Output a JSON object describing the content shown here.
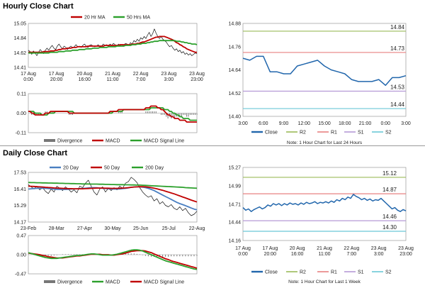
{
  "sections": {
    "hourly_title": "Hourly Close Chart",
    "daily_title": "Daily Close Chart"
  },
  "colors": {
    "price": "#111111",
    "ma20": "#c00000",
    "ma50": "#2ca02c",
    "ma200": "#2ca02c",
    "ma20_daily": "#4a7fc1",
    "ma50_daily": "#c00000",
    "macd_hourly": "#c00000",
    "signal_hourly": "#2ca02c",
    "macd_daily": "#2ca02c",
    "signal_daily": "#c00000",
    "divergence": "#777777",
    "close": "#2166ac",
    "r2": "#9bbb59",
    "r1": "#e88080",
    "s1": "#b59ad6",
    "s2": "#6bc8d6"
  },
  "chart_data": [
    {
      "id": "hourly_price",
      "type": "line",
      "legend": [
        "20 Hr MA",
        "50 Hrs MA"
      ],
      "ylim": [
        14.41,
        15.05
      ],
      "yticks": [
        15.05,
        14.84,
        14.62,
        14.41
      ],
      "xticks": [
        "17 Aug\n0:00",
        "17 Aug\n20:00",
        "20 Aug\n16:00",
        "21 Aug\n11:00",
        "22 Aug\n7:00",
        "23 Aug\n3:00",
        "23 Aug\n23:00"
      ],
      "n": 100,
      "price": [
        14.66,
        14.64,
        14.6,
        14.65,
        14.62,
        14.58,
        14.63,
        14.67,
        14.64,
        14.61,
        14.66,
        14.69,
        14.66,
        14.7,
        14.73,
        14.69,
        14.67,
        14.72,
        14.75,
        14.71,
        14.68,
        14.72,
        14.7,
        14.67,
        14.7,
        14.72,
        14.69,
        14.71,
        14.74,
        14.71,
        14.72,
        14.7,
        14.73,
        14.75,
        14.72,
        14.7,
        14.73,
        14.74,
        14.72,
        14.71,
        14.72,
        14.74,
        14.71,
        14.72,
        14.75,
        14.73,
        14.74,
        14.72,
        14.75,
        14.73,
        14.76,
        14.74,
        14.72,
        14.75,
        14.73,
        14.74,
        14.72,
        14.76,
        14.75,
        14.73,
        14.77,
        14.75,
        14.8,
        14.78,
        14.82,
        14.79,
        14.84,
        14.82,
        14.86,
        14.83,
        14.88,
        14.92,
        14.86,
        14.9,
        14.97,
        14.91,
        14.86,
        14.83,
        14.86,
        14.82,
        14.8,
        14.78,
        14.74,
        14.71,
        14.73,
        14.69,
        14.66,
        14.68,
        14.64,
        14.66,
        14.62,
        14.64,
        14.6,
        14.62,
        14.59,
        14.61,
        14.58,
        14.6,
        14.62,
        14.61
      ],
      "ma20": [
        14.63,
        14.63,
        14.63,
        14.63,
        14.63,
        14.63,
        14.63,
        14.63,
        14.63,
        14.64,
        14.64,
        14.64,
        14.64,
        14.65,
        14.65,
        14.65,
        14.66,
        14.66,
        14.67,
        14.67,
        14.68,
        14.68,
        14.68,
        14.69,
        14.69,
        14.69,
        14.7,
        14.7,
        14.7,
        14.71,
        14.71,
        14.71,
        14.71,
        14.71,
        14.71,
        14.72,
        14.72,
        14.72,
        14.72,
        14.72,
        14.72,
        14.72,
        14.72,
        14.72,
        14.72,
        14.73,
        14.73,
        14.73,
        14.73,
        14.73,
        14.73,
        14.73,
        14.73,
        14.73,
        14.74,
        14.74,
        14.74,
        14.74,
        14.74,
        14.74,
        14.74,
        14.75,
        14.75,
        14.75,
        14.76,
        14.76,
        14.77,
        14.78,
        14.78,
        14.79,
        14.8,
        14.81,
        14.82,
        14.83,
        14.84,
        14.85,
        14.85,
        14.86,
        14.86,
        14.86,
        14.86,
        14.85,
        14.84,
        14.83,
        14.82,
        14.81,
        14.79,
        14.77,
        14.76,
        14.74,
        14.73,
        14.71,
        14.7,
        14.68,
        14.67,
        14.66,
        14.65,
        14.64,
        14.63,
        14.63
      ],
      "ma50": [
        14.62,
        14.62,
        14.62,
        14.62,
        14.62,
        14.62,
        14.62,
        14.62,
        14.62,
        14.62,
        14.62,
        14.62,
        14.62,
        14.63,
        14.63,
        14.63,
        14.63,
        14.63,
        14.64,
        14.64,
        14.64,
        14.64,
        14.65,
        14.65,
        14.65,
        14.65,
        14.66,
        14.66,
        14.66,
        14.66,
        14.67,
        14.67,
        14.67,
        14.67,
        14.68,
        14.68,
        14.68,
        14.68,
        14.69,
        14.69,
        14.69,
        14.69,
        14.7,
        14.7,
        14.7,
        14.7,
        14.7,
        14.71,
        14.71,
        14.71,
        14.71,
        14.71,
        14.72,
        14.72,
        14.72,
        14.72,
        14.72,
        14.73,
        14.73,
        14.73,
        14.73,
        14.74,
        14.74,
        14.74,
        14.75,
        14.75,
        14.75,
        14.76,
        14.76,
        14.76,
        14.77,
        14.77,
        14.78,
        14.78,
        14.79,
        14.79,
        14.79,
        14.8,
        14.8,
        14.8,
        14.8,
        14.8,
        14.8,
        14.8,
        14.8,
        14.8,
        14.8,
        14.79,
        14.79,
        14.79,
        14.78,
        14.78,
        14.77,
        14.77,
        14.76,
        14.76,
        14.75,
        14.75,
        14.75,
        14.74
      ]
    },
    {
      "id": "hourly_macd",
      "type": "line",
      "legend": [
        "Divergence",
        "MACD",
        "MACD Signal Line"
      ],
      "ylim": [
        -0.11,
        0.11
      ],
      "yticks": [
        0.11,
        0.0,
        -0.11
      ],
      "macd": [
        0.01,
        0.01,
        0.0,
        0.0,
        -0.01,
        -0.01,
        -0.01,
        -0.01,
        -0.01,
        -0.01,
        0.0,
        0.0,
        0.0,
        0.01,
        0.01,
        0.01,
        0.01,
        0.01,
        0.01,
        0.01,
        0.01,
        0.01,
        0.01,
        0.01,
        0.0,
        0.0,
        0.0,
        0.0,
        0.0,
        0.0,
        0.0,
        0.0,
        0.0,
        0.0,
        0.0,
        0.0,
        0.0,
        0.0,
        0.0,
        0.0,
        0.0,
        0.0,
        0.0,
        0.0,
        0.0,
        0.0,
        0.0,
        0.0,
        0.01,
        0.01,
        0.01,
        0.01,
        0.01,
        0.02,
        0.02,
        0.02,
        0.02,
        0.02,
        0.02,
        0.02,
        0.02,
        0.02,
        0.02,
        0.02,
        0.02,
        0.02,
        0.02,
        0.02,
        0.02,
        0.03,
        0.03,
        0.03,
        0.04,
        0.04,
        0.04,
        0.04,
        0.03,
        0.03,
        0.02,
        0.02,
        0.01,
        0.0,
        -0.01,
        -0.01,
        -0.02,
        -0.02,
        -0.03,
        -0.03,
        -0.03,
        -0.04,
        -0.04,
        -0.04,
        -0.04,
        -0.05,
        -0.05,
        -0.05,
        -0.05,
        -0.05,
        -0.05,
        -0.05
      ],
      "signal": [
        0.01,
        0.01,
        0.01,
        0.01,
        0.0,
        0.0,
        0.0,
        0.0,
        -0.01,
        -0.01,
        -0.01,
        -0.01,
        0.0,
        0.0,
        0.0,
        0.0,
        0.01,
        0.01,
        0.01,
        0.01,
        0.01,
        0.01,
        0.01,
        0.01,
        0.01,
        0.01,
        0.01,
        0.0,
        0.0,
        0.0,
        0.0,
        0.0,
        0.0,
        0.0,
        0.0,
        0.0,
        0.0,
        0.0,
        0.0,
        0.0,
        0.0,
        0.0,
        0.0,
        0.0,
        0.0,
        0.0,
        0.0,
        0.0,
        0.0,
        0.0,
        0.01,
        0.01,
        0.01,
        0.01,
        0.01,
        0.01,
        0.02,
        0.02,
        0.02,
        0.02,
        0.02,
        0.02,
        0.02,
        0.02,
        0.02,
        0.02,
        0.02,
        0.02,
        0.02,
        0.02,
        0.02,
        0.02,
        0.03,
        0.03,
        0.03,
        0.03,
        0.03,
        0.03,
        0.03,
        0.03,
        0.02,
        0.02,
        0.02,
        0.01,
        0.01,
        0.0,
        0.0,
        -0.01,
        -0.01,
        -0.02,
        -0.02,
        -0.03,
        -0.03,
        -0.03,
        -0.03,
        -0.04,
        -0.04,
        -0.04,
        -0.04,
        -0.04
      ]
    },
    {
      "id": "hourly_pivot",
      "type": "line",
      "legend": [
        "Close",
        "R2",
        "R1",
        "S1",
        "S2"
      ],
      "note": "Note: 1 Hour Chart for Last 24 Hours",
      "ylim": [
        14.4,
        14.88
      ],
      "yticks": [
        14.88,
        14.76,
        14.64,
        14.52,
        14.4
      ],
      "xticks": [
        "3:00",
        "6:00",
        "9:00",
        "12:00",
        "15:00",
        "18:00",
        "21:00",
        "0:00",
        "3:00"
      ],
      "close": [
        14.7,
        14.69,
        14.71,
        14.71,
        14.63,
        14.63,
        14.62,
        14.62,
        14.66,
        14.67,
        14.68,
        14.69,
        14.66,
        14.64,
        14.63,
        14.62,
        14.59,
        14.58,
        14.58,
        14.58,
        14.59,
        14.56,
        14.6,
        14.6,
        14.61
      ],
      "levels": {
        "R2": 14.84,
        "R1": 14.73,
        "S1": 14.53,
        "S2": 14.44
      },
      "level_labels": {
        "R2": "14.84",
        "R1": "14.73",
        "S1": "14.53",
        "S2": "14.44"
      }
    },
    {
      "id": "daily_price",
      "type": "line",
      "legend": [
        "20 Day",
        "50 Day",
        "200 Day"
      ],
      "ylim": [
        14.17,
        17.53
      ],
      "yticks": [
        17.53,
        16.41,
        15.29,
        14.17
      ],
      "xticks": [
        "23-Feb",
        "28-Mar",
        "27-Apr",
        "30-May",
        "25-Jun",
        "25-Jul",
        "22-Aug"
      ],
      "price": [
        16.7,
        16.55,
        16.4,
        16.6,
        16.35,
        16.5,
        16.25,
        16.1,
        16.4,
        16.2,
        16.6,
        16.45,
        16.3,
        16.55,
        16.4,
        16.2,
        16.35,
        16.15,
        16.6,
        16.5,
        16.8,
        17.0,
        16.6,
        16.2,
        16.0,
        16.4,
        16.55,
        16.2,
        16.45,
        16.3,
        16.5,
        16.35,
        16.6,
        16.45,
        16.8,
        16.9,
        17.2,
        17.05,
        16.85,
        16.5,
        16.2,
        16.0,
        15.85,
        15.95,
        15.6,
        15.75,
        15.4,
        15.55,
        15.3,
        15.2,
        15.35,
        15.1,
        15.0,
        15.2,
        14.95,
        15.1,
        14.8,
        14.6,
        14.7,
        14.9
      ],
      "ma20": [
        16.4,
        16.42,
        16.44,
        16.45,
        16.46,
        16.46,
        16.45,
        16.44,
        16.42,
        16.4,
        16.38,
        16.38,
        16.38,
        16.38,
        16.39,
        16.4,
        16.41,
        16.42,
        16.43,
        16.44,
        16.46,
        16.48,
        16.5,
        16.5,
        16.49,
        16.47,
        16.45,
        16.44,
        16.42,
        16.4,
        16.4,
        16.4,
        16.41,
        16.43,
        16.45,
        16.48,
        16.52,
        16.54,
        16.55,
        16.55,
        16.53,
        16.5,
        16.45,
        16.38,
        16.3,
        16.2,
        16.1,
        16.0,
        15.9,
        15.8,
        15.7,
        15.6,
        15.5,
        15.42,
        15.35,
        15.28,
        15.2,
        15.12,
        15.05,
        15.0
      ],
      "ma50": [
        16.6,
        16.59,
        16.58,
        16.56,
        16.55,
        16.54,
        16.52,
        16.51,
        16.5,
        16.48,
        16.47,
        16.46,
        16.45,
        16.44,
        16.43,
        16.43,
        16.42,
        16.42,
        16.42,
        16.42,
        16.43,
        16.44,
        16.45,
        16.46,
        16.47,
        16.47,
        16.47,
        16.46,
        16.46,
        16.45,
        16.45,
        16.45,
        16.46,
        16.47,
        16.48,
        16.5,
        16.52,
        16.54,
        16.55,
        16.56,
        16.56,
        16.55,
        16.53,
        16.5,
        16.46,
        16.42,
        16.37,
        16.32,
        16.26,
        16.2,
        16.14,
        16.08,
        16.01,
        15.94,
        15.87,
        15.8,
        15.73,
        15.66,
        15.59,
        15.53
      ],
      "ma200": [
        16.85,
        16.84,
        16.84,
        16.83,
        16.83,
        16.82,
        16.82,
        16.81,
        16.81,
        16.8,
        16.8,
        16.79,
        16.79,
        16.78,
        16.78,
        16.77,
        16.77,
        16.76,
        16.76,
        16.75,
        16.75,
        16.75,
        16.74,
        16.74,
        16.74,
        16.73,
        16.73,
        16.72,
        16.72,
        16.71,
        16.71,
        16.7,
        16.7,
        16.7,
        16.69,
        16.69,
        16.68,
        16.68,
        16.67,
        16.67,
        16.66,
        16.65,
        16.64,
        16.63,
        16.62,
        16.61,
        16.6,
        16.59,
        16.58,
        16.57,
        16.56,
        16.55,
        16.54,
        16.53,
        16.52,
        16.5,
        16.49,
        16.48,
        16.47,
        16.46
      ]
    },
    {
      "id": "daily_macd",
      "type": "line",
      "legend": [
        "Divergence",
        "MACD",
        "MACD Signal Line"
      ],
      "ylim": [
        -0.47,
        0.47
      ],
      "yticks": [
        0.47,
        0.0,
        -0.47
      ],
      "macd": [
        0.05,
        0.03,
        0.01,
        -0.01,
        -0.03,
        -0.05,
        -0.07,
        -0.08,
        -0.09,
        -0.09,
        -0.09,
        -0.08,
        -0.07,
        -0.06,
        -0.05,
        -0.04,
        -0.03,
        -0.02,
        -0.02,
        -0.01,
        0.0,
        0.01,
        0.02,
        0.02,
        0.01,
        0.0,
        -0.01,
        -0.01,
        -0.01,
        -0.01,
        0.0,
        0.01,
        0.03,
        0.05,
        0.07,
        0.09,
        0.11,
        0.12,
        0.12,
        0.11,
        0.09,
        0.06,
        0.03,
        0.0,
        -0.03,
        -0.06,
        -0.09,
        -0.12,
        -0.15,
        -0.17,
        -0.19,
        -0.21,
        -0.23,
        -0.25,
        -0.27,
        -0.29,
        -0.31,
        -0.33,
        -0.35,
        -0.36
      ],
      "signal": [
        0.04,
        0.03,
        0.02,
        0.01,
        0.0,
        -0.02,
        -0.03,
        -0.05,
        -0.06,
        -0.07,
        -0.08,
        -0.08,
        -0.08,
        -0.07,
        -0.06,
        -0.05,
        -0.04,
        -0.03,
        -0.03,
        -0.02,
        -0.01,
        0.0,
        0.01,
        0.01,
        0.01,
        0.01,
        0.0,
        0.0,
        0.0,
        -0.01,
        -0.01,
        0.0,
        0.01,
        0.02,
        0.04,
        0.06,
        0.08,
        0.09,
        0.1,
        0.1,
        0.1,
        0.09,
        0.07,
        0.05,
        0.02,
        -0.01,
        -0.04,
        -0.07,
        -0.1,
        -0.12,
        -0.15,
        -0.17,
        -0.19,
        -0.21,
        -0.23,
        -0.25,
        -0.27,
        -0.29,
        -0.31,
        -0.33
      ]
    },
    {
      "id": "weekly_pivot",
      "type": "line",
      "legend": [
        "Close",
        "R2",
        "R1",
        "S1",
        "S2"
      ],
      "note": "Note: 1 Hour Chart for Last 1 Week",
      "ylim": [
        14.16,
        15.27
      ],
      "yticks": [
        15.27,
        14.99,
        14.71,
        14.44,
        14.16
      ],
      "xticks": [
        "17 Aug\n0:00",
        "17 Aug\n20:00",
        "20 Aug\n16:00",
        "21 Aug\n11:00",
        "22 Aug\n7:00",
        "23 Aug\n3:00",
        "23 Aug\n23:00"
      ],
      "close": [
        14.66,
        14.62,
        14.64,
        14.6,
        14.63,
        14.65,
        14.67,
        14.64,
        14.66,
        14.7,
        14.68,
        14.72,
        14.7,
        14.72,
        14.69,
        14.72,
        14.7,
        14.73,
        14.71,
        14.72,
        14.7,
        14.73,
        14.71,
        14.74,
        14.72,
        14.73,
        14.75,
        14.72,
        14.74,
        14.73,
        14.75,
        14.73,
        14.76,
        14.74,
        14.78,
        14.76,
        14.8,
        14.78,
        14.82,
        14.8,
        14.86,
        14.83,
        14.81,
        14.78,
        14.8,
        14.77,
        14.79,
        14.76,
        14.78,
        14.77,
        14.8,
        14.76,
        14.72,
        14.68,
        14.64,
        14.66,
        14.62,
        14.6,
        14.63,
        14.61
      ],
      "levels": {
        "R2": 15.12,
        "R1": 14.87,
        "S1": 14.46,
        "S2": 14.3
      },
      "level_labels": {
        "R2": "15.12",
        "R1": "14.87",
        "S1": "14.46",
        "S2": "14.30"
      }
    }
  ]
}
